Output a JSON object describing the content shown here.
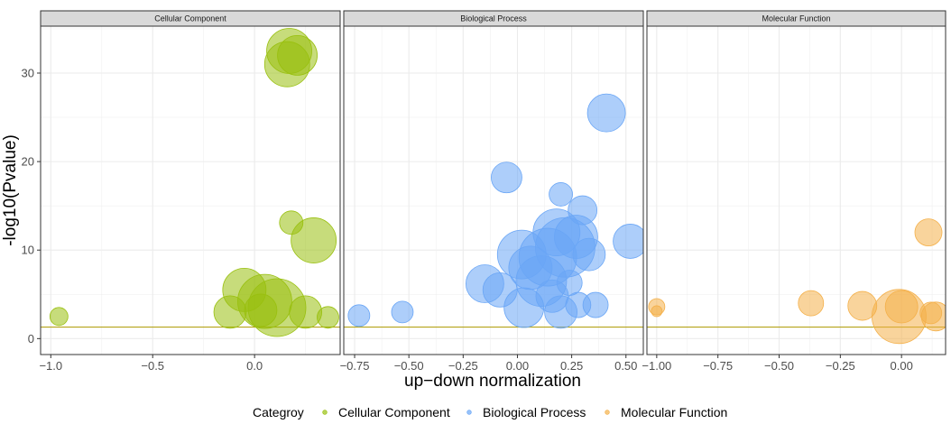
{
  "chart_data": {
    "type": "scatter",
    "ylabel": "-log10(Pvalue)",
    "xlabel": "up−down normalization",
    "threshold": 1.3,
    "threshold_color": "#b5a318",
    "grid": true,
    "legend": {
      "title": "Categroy",
      "position": "bottom",
      "items": [
        {
          "label": "Cellular Component",
          "color": "#99c00f"
        },
        {
          "label": "Biological Process",
          "color": "#6aa6f6"
        },
        {
          "label": "Molecular Function",
          "color": "#f4b04a"
        }
      ]
    },
    "panels": [
      {
        "name": "Cellular Component",
        "color": "#99c00f",
        "xlim": [
          -1.05,
          0.42
        ],
        "ylim": [
          -1.8,
          35.3
        ],
        "xticks": [
          -1.0,
          -0.5,
          0.0
        ],
        "xtick_labels": [
          "−1.0",
          "−0.5",
          "0.0"
        ],
        "yticks": [
          0,
          10,
          20,
          30
        ],
        "ytick_labels": [
          "0",
          "10",
          "20",
          "30"
        ],
        "points": [
          {
            "x": -0.96,
            "y": 2.5,
            "r": 10
          },
          {
            "x": 0.17,
            "y": 32.5,
            "r": 25
          },
          {
            "x": 0.21,
            "y": 32.0,
            "r": 22
          },
          {
            "x": 0.16,
            "y": 31.0,
            "r": 25
          },
          {
            "x": 0.18,
            "y": 13.1,
            "r": 13
          },
          {
            "x": 0.29,
            "y": 11.1,
            "r": 25
          },
          {
            "x": -0.05,
            "y": 5.5,
            "r": 24
          },
          {
            "x": 0.05,
            "y": 4.2,
            "r": 30
          },
          {
            "x": 0.11,
            "y": 3.5,
            "r": 32
          },
          {
            "x": -0.12,
            "y": 3.0,
            "r": 18
          },
          {
            "x": 0.03,
            "y": 3.2,
            "r": 18
          },
          {
            "x": 0.25,
            "y": 3.0,
            "r": 18
          },
          {
            "x": 0.36,
            "y": 2.4,
            "r": 12
          }
        ]
      },
      {
        "name": "Biological Process",
        "color": "#6aa6f6",
        "xlim": [
          -0.8,
          0.58
        ],
        "ylim": [
          -1.8,
          35.3
        ],
        "xticks": [
          -0.75,
          -0.5,
          -0.25,
          0.0,
          0.25,
          0.5
        ],
        "xtick_labels": [
          "−0.75",
          "−0.50",
          "−0.25",
          "0.00",
          "0.25",
          "0.50"
        ],
        "yticks": [
          0,
          10,
          20,
          30
        ],
        "ytick_labels": [
          "0",
          "10",
          "20",
          "30"
        ],
        "points": [
          {
            "x": -0.73,
            "y": 2.6,
            "r": 12
          },
          {
            "x": -0.53,
            "y": 3.0,
            "r": 12
          },
          {
            "x": 0.41,
            "y": 25.5,
            "r": 21
          },
          {
            "x": -0.05,
            "y": 18.2,
            "r": 17
          },
          {
            "x": 0.2,
            "y": 16.3,
            "r": 13
          },
          {
            "x": 0.3,
            "y": 14.5,
            "r": 16
          },
          {
            "x": 0.52,
            "y": 11.0,
            "r": 19
          },
          {
            "x": 0.02,
            "y": 9.5,
            "r": 27
          },
          {
            "x": 0.14,
            "y": 9.2,
            "r": 32
          },
          {
            "x": 0.22,
            "y": 10.3,
            "r": 33
          },
          {
            "x": 0.18,
            "y": 12.0,
            "r": 26
          },
          {
            "x": 0.27,
            "y": 11.5,
            "r": 24
          },
          {
            "x": 0.33,
            "y": 9.5,
            "r": 18
          },
          {
            "x": 0.06,
            "y": 8.0,
            "r": 24
          },
          {
            "x": 0.11,
            "y": 6.5,
            "r": 28
          },
          {
            "x": -0.15,
            "y": 6.2,
            "r": 21
          },
          {
            "x": -0.08,
            "y": 5.5,
            "r": 19
          },
          {
            "x": 0.24,
            "y": 6.3,
            "r": 14
          },
          {
            "x": 0.36,
            "y": 3.8,
            "r": 14
          },
          {
            "x": 0.2,
            "y": 3.0,
            "r": 18
          },
          {
            "x": 0.28,
            "y": 3.8,
            "r": 14
          },
          {
            "x": 0.03,
            "y": 3.5,
            "r": 22
          },
          {
            "x": 0.16,
            "y": 4.8,
            "r": 18
          }
        ]
      },
      {
        "name": "Molecular Function",
        "color": "#f4b04a",
        "xlim": [
          -1.04,
          0.18
        ],
        "ylim": [
          -1.8,
          35.3
        ],
        "xticks": [
          -1.0,
          -0.75,
          -0.5,
          -0.25,
          0.0
        ],
        "xtick_labels": [
          "−1.00",
          "−0.75",
          "−0.50",
          "−0.25",
          "0.00"
        ],
        "yticks": [
          0,
          10,
          20,
          30
        ],
        "ytick_labels": [
          "0",
          "10",
          "20",
          "30"
        ],
        "points": [
          {
            "x": -1.0,
            "y": 3.6,
            "r": 9
          },
          {
            "x": -1.0,
            "y": 3.1,
            "r": 6
          },
          {
            "x": 0.11,
            "y": 12.0,
            "r": 15
          },
          {
            "x": -0.37,
            "y": 4.0,
            "r": 14
          },
          {
            "x": -0.16,
            "y": 3.7,
            "r": 16
          },
          {
            "x": 0.0,
            "y": 3.6,
            "r": 18
          },
          {
            "x": -0.01,
            "y": 2.5,
            "r": 30
          },
          {
            "x": 0.12,
            "y": 2.9,
            "r": 12
          },
          {
            "x": 0.14,
            "y": 2.5,
            "r": 16
          }
        ]
      }
    ]
  }
}
